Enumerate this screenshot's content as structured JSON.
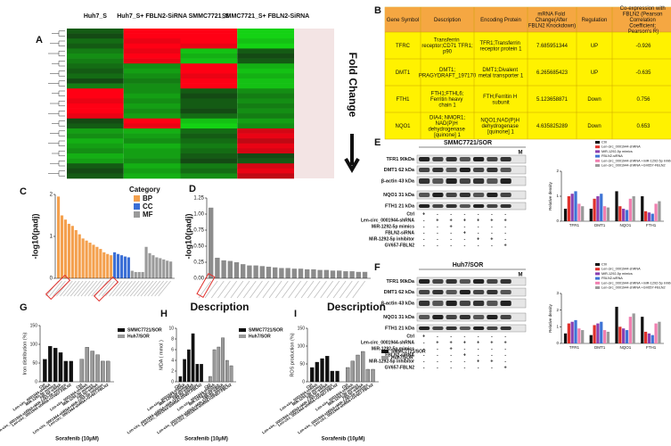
{
  "A": {
    "label": "A",
    "columns": [
      "Huh7_S",
      "Huh7_S+ FBLN2-SiRNA",
      "SMMC7721_S",
      "SMMC7721_S+ FBLN2-SiRNA"
    ],
    "side_label": "Fold Change",
    "rows": [
      [
        -0.3,
        1,
        1,
        -1
      ],
      [
        -0.2,
        1,
        1,
        -1
      ],
      [
        -0.4,
        0.9,
        1,
        -0.9
      ],
      [
        -0.3,
        1,
        0.9,
        -1
      ],
      [
        -0.5,
        0.9,
        -0.9,
        -0.3
      ],
      [
        -0.6,
        1,
        -0.8,
        -0.2
      ],
      [
        -0.5,
        0.9,
        -0.9,
        -0.3
      ],
      [
        -0.4,
        -0.6,
        1,
        -0.8
      ],
      [
        -0.3,
        -0.7,
        1,
        -0.9
      ],
      [
        -0.4,
        -0.6,
        0.9,
        -0.8
      ],
      [
        -0.2,
        -0.5,
        1,
        -0.9
      ],
      [
        -0.5,
        -0.6,
        1,
        -0.9
      ],
      [
        1,
        -0.6,
        -0.3,
        -0.6
      ],
      [
        1,
        -0.7,
        -0.2,
        -0.5
      ],
      [
        0.9,
        -0.6,
        -0.3,
        -0.6
      ],
      [
        1,
        -0.7,
        -0.3,
        -0.5
      ],
      [
        1,
        -0.6,
        -0.2,
        -0.6
      ],
      [
        0.9,
        -0.7,
        -0.4,
        -0.5
      ],
      [
        -0.2,
        1,
        -0.9,
        -0.7
      ],
      [
        -0.3,
        0.9,
        -1,
        -0.6
      ],
      [
        -0.7,
        -0.8,
        -0.4,
        0.8
      ],
      [
        -0.6,
        -0.7,
        -0.3,
        0.9
      ],
      [
        -0.8,
        -0.6,
        -0.4,
        0.7
      ],
      [
        -0.7,
        -0.8,
        -0.5,
        0.9
      ],
      [
        -0.6,
        -0.7,
        -0.4,
        0.8
      ],
      [
        -0.8,
        -0.7,
        -0.3,
        -0.2
      ],
      [
        -0.7,
        -0.6,
        -0.2,
        -0.3
      ],
      [
        -0.3,
        -0.8,
        -0.5,
        0.8
      ],
      [
        -0.2,
        -0.7,
        -0.4,
        0.9
      ],
      [
        -0.3,
        -0.8,
        -0.6,
        0.7
      ]
    ]
  },
  "B": {
    "label": "B",
    "header": [
      "Gene Symbol",
      "Description",
      "Encoding Protein",
      "mRNA Fold Change(After FBLN2 Knockdown)",
      "Regulation",
      "Co-expression with FBLN2 (Pearson Correlation Coefficient; Pearson's R)"
    ],
    "rows": [
      [
        "TFRC",
        "Transferrin receptor;CD71 TFR1;p90",
        "TFR1;Transferrin receptor protein 1",
        "7.685951344",
        "UP",
        "-0.926"
      ],
      [
        "DMT1",
        "DMT1;PRAGYDRAFT_197170",
        "DMT1;Divalent metal transporter 1",
        "6.265685423",
        "UP",
        "-0.635"
      ],
      [
        "FTH1",
        "FTH1;FTHL6;Ferritin heavy chain 1",
        "FTH;Ferritin H subunit",
        "5.123658871",
        "Down",
        "0.756"
      ],
      [
        "NQO1",
        "DIA4; NMOR1;NAD(P)H dehydrogenase [quinone] 1",
        "NQO1;NAD(P)H dehydrogenase [quinone] 1",
        "4.635825289",
        "Down",
        "0.653"
      ]
    ]
  },
  "C": {
    "label": "C",
    "ylabel": "-log10(padj)",
    "legend_title": "Category",
    "ylim": [
      0,
      2
    ],
    "yticks": [
      0,
      1,
      2
    ],
    "groups": [
      {
        "name": "BP",
        "color": "#f4a04d",
        "values": [
          1.95,
          1.5,
          1.4,
          1.3,
          1.25,
          1.15,
          1.05,
          0.95,
          0.9,
          0.85,
          0.8,
          0.75,
          0.7,
          0.62,
          0.58,
          0.55
        ]
      },
      {
        "name": "CC",
        "color": "#3b6fd6",
        "values": [
          0.62,
          0.58,
          0.55,
          0.52,
          0.5
        ]
      },
      {
        "name": "MF",
        "color": "#9a9a9a",
        "values": [
          0.18,
          0.15,
          0.15,
          0.15,
          0.75,
          0.6,
          0.55,
          0.5,
          0.48,
          0.45,
          0.42,
          0.4
        ]
      }
    ]
  },
  "D": {
    "label": "D",
    "ylabel": "-log10(padj)",
    "color": "#8c8c8c",
    "ylim": [
      0,
      1.25
    ],
    "yticks": [
      {
        "value": 0,
        "label": "0.00"
      },
      {
        "value": 0.25,
        "label": "0.25"
      },
      {
        "value": 0.5,
        "label": "0.50"
      },
      {
        "value": 0.75,
        "label": "0.75"
      },
      {
        "value": 1,
        "label": "1.00"
      },
      {
        "value": 1.25,
        "label": "1.25"
      }
    ],
    "values": [
      1.1,
      0.32,
      0.28,
      0.27,
      0.25,
      0.22,
      0.2,
      0.2,
      0.19,
      0.18,
      0.17,
      0.16,
      0.16,
      0.15,
      0.15,
      0.14,
      0.14,
      0.13,
      0.13,
      0.12,
      0.12,
      0.11,
      0.11,
      0.1,
      0.1
    ]
  },
  "E": {
    "label": "E",
    "title": "SMMC7721/SOR",
    "marker": "M",
    "proteins": [
      "TFR1 90kDa",
      "DMT1 62 kDa",
      "β-actin  43 kDa",
      "NQO1  31 kDa",
      "FTH1 21 kDa"
    ],
    "conditions": [
      "Ctrl",
      "Len-circ_0001944-shRNA",
      "MiR-1292-5p mimics",
      "FBLN2-siRNA",
      "MiR-1292-5p inhibitor",
      "GV657-FBLN2"
    ],
    "signs": [
      [
        "+",
        "-",
        "-",
        "-",
        "-",
        "-",
        "-"
      ],
      [
        "-",
        "+",
        "+",
        "+",
        "+",
        "+",
        "+"
      ],
      [
        "-",
        "-",
        "+",
        "-",
        "-",
        "-",
        "-"
      ],
      [
        "-",
        "-",
        "-",
        "+",
        "-",
        "-",
        "-"
      ],
      [
        "-",
        "-",
        "-",
        "-",
        "+",
        "+",
        "-"
      ],
      [
        "-",
        "-",
        "-",
        "-",
        "-",
        "-",
        "+"
      ]
    ],
    "chart": {
      "ylabel": "Relative density",
      "categories": [
        "TFR1",
        "DMT1",
        "NQO1",
        "FTH1"
      ],
      "ylim": [
        0,
        2
      ],
      "yticks": [
        0,
        1,
        2
      ],
      "series": [
        {
          "name": "Ctrl",
          "color": "#111111",
          "values": [
            0.5,
            0.5,
            1.2,
            1.0
          ]
        },
        {
          "name": "Len-circ_0001944-shRNA",
          "color": "#e0302c",
          "values": [
            1.0,
            0.9,
            0.6,
            0.4
          ]
        },
        {
          "name": "MiR-1292-5p mimics",
          "color": "#8a3fb0",
          "values": [
            1.1,
            1.0,
            0.5,
            0.35
          ]
        },
        {
          "name": "FBLN2-siRNA",
          "color": "#3f74d6",
          "values": [
            1.2,
            1.1,
            0.45,
            0.3
          ]
        },
        {
          "name": "Len-circ_0001944-shRNA +miR-1292-5p inhibitor",
          "color": "#f07fb0",
          "values": [
            0.7,
            0.6,
            0.9,
            0.7
          ]
        },
        {
          "name": "Len-circ_0001944-shRNA +GV657-FBLN2",
          "color": "#9a9a9a",
          "values": [
            0.6,
            0.55,
            1.0,
            0.8
          ]
        }
      ]
    }
  },
  "F": {
    "label": "F",
    "title": "Huh7/SOR",
    "marker": "M",
    "proteins": [
      "TFR1 90kDa",
      "DMT1 62 kDa",
      "β-actin  43 kDa",
      "NQO1  31 kDa",
      "FTH1 21 kDa"
    ],
    "conditions": [
      "Ctrl",
      "Len-circ_0001944-shRNA",
      "MiR-1292-5p mimics",
      "FBLN2-siRNA",
      "MiR-1292-5p inhibitor",
      "GV657-FBLN2"
    ],
    "signs": [
      [
        "+",
        "-",
        "-",
        "-",
        "-",
        "-",
        "-"
      ],
      [
        "-",
        "+",
        "+",
        "+",
        "+",
        "+",
        "+"
      ],
      [
        "-",
        "-",
        "+",
        "-",
        "-",
        "-",
        "-"
      ],
      [
        "-",
        "-",
        "-",
        "+",
        "-",
        "-",
        "-"
      ],
      [
        "-",
        "-",
        "-",
        "-",
        "+",
        "+",
        "-"
      ],
      [
        "-",
        "-",
        "-",
        "-",
        "-",
        "-",
        "+"
      ]
    ],
    "chart": {
      "ylabel": "Relative density",
      "categories": [
        "TFR1",
        "DMT1",
        "NQO1",
        "FTH1"
      ],
      "ylim": [
        0,
        3
      ],
      "yticks": [
        0,
        1,
        2,
        3
      ],
      "series": [
        {
          "name": "Ctrl",
          "color": "#111111",
          "values": [
            0.6,
            0.5,
            2.2,
            1.6
          ]
        },
        {
          "name": "Len-circ_0001944-shRNA",
          "color": "#e0302c",
          "values": [
            1.2,
            1.1,
            1.0,
            0.7
          ]
        },
        {
          "name": "MiR-1292-5p mimics",
          "color": "#8a3fb0",
          "values": [
            1.3,
            1.2,
            0.9,
            0.6
          ]
        },
        {
          "name": "FBLN2-siRNA",
          "color": "#3f74d6",
          "values": [
            1.4,
            1.3,
            0.8,
            0.5
          ]
        },
        {
          "name": "Len-circ_0001944-shRNA +miR-1292-5p inhibitor",
          "color": "#f07fb0",
          "values": [
            0.9,
            0.8,
            1.6,
            1.2
          ]
        },
        {
          "name": "Len-circ_0001944-shRNA +GV657-FBLN2",
          "color": "#9a9a9a",
          "values": [
            0.8,
            0.7,
            1.8,
            1.3
          ]
        }
      ]
    }
  },
  "G": {
    "label": "G",
    "ylabel": "Iron distribution (%)",
    "xlabel": "Sorafenib (10μM)",
    "ylim": [
      0,
      150
    ],
    "yticks": [
      0,
      50,
      100,
      150
    ],
    "categories": [
      "Ctrl",
      "Len-circ_0001944-shRNA",
      "MiR-1292-5p mimics",
      "FBLN2-siRNA",
      "Len-circ_0001944-shRNA+MiR-1292-5p inhibitor",
      "Len-circ_0001944-shRNA+GV657-FBLN2"
    ],
    "series": [
      {
        "name": "SMMC7721/SOR",
        "color": "#111111",
        "values": [
          60,
          95,
          90,
          78,
          55,
          55
        ]
      },
      {
        "name": "Huh7/SOR",
        "color": "#9a9a9a",
        "values": [
          60,
          92,
          82,
          72,
          55,
          55
        ]
      }
    ]
  },
  "H": {
    "label": "H",
    "title": "Description",
    "ylabel": "MDA ( mmol )",
    "xlabel": "Sorafenib (10μM)",
    "ylim": [
      0,
      10
    ],
    "yticks": [
      0,
      2,
      4,
      6,
      8,
      10
    ],
    "categories": [
      "Ctrl",
      "Len-circ_0001944-shRNA",
      "MiR-1292-5p mimics",
      "FBLN2-siRNA",
      "Len-circ_0001944-shRNA+MiR-1292-5p inhibitor",
      "Len-circ_0001944-shRNA+GV657-FBLN2"
    ],
    "series": [
      {
        "name": "SMMC7721/SOR",
        "color": "#111111",
        "values": [
          1,
          4.2,
          6,
          9,
          3.3,
          3.3
        ]
      },
      {
        "name": "Huh7/SOR",
        "color": "#9a9a9a",
        "values": [
          1,
          6,
          6.5,
          8.2,
          4,
          3
        ]
      }
    ]
  },
  "I": {
    "label": "I",
    "title": "Description",
    "ylabel": "ROS production (%)",
    "xlabel": "Sorafenib (10μM)",
    "ylim": [
      0,
      150
    ],
    "yticks": [
      0,
      50,
      100,
      150
    ],
    "categories": [
      "Ctrl",
      "Len-circ_0001944-shRNA",
      "MiR-1292-5p mimics",
      "FBLN2-siRNA",
      "Len-circ_0001944-shRNA+MiR-1292-5p inhibitor",
      "Len-circ_0001944-shRNA+GV657-FBLN2"
    ],
    "series": [
      {
        "name": "SMMC7721/SOR",
        "color": "#111111",
        "values": [
          40,
          55,
          65,
          72,
          30,
          30
        ]
      },
      {
        "name": "Huh7/SOR",
        "color": "#9a9a9a",
        "values": [
          40,
          58,
          75,
          85,
          35,
          35
        ]
      }
    ]
  }
}
